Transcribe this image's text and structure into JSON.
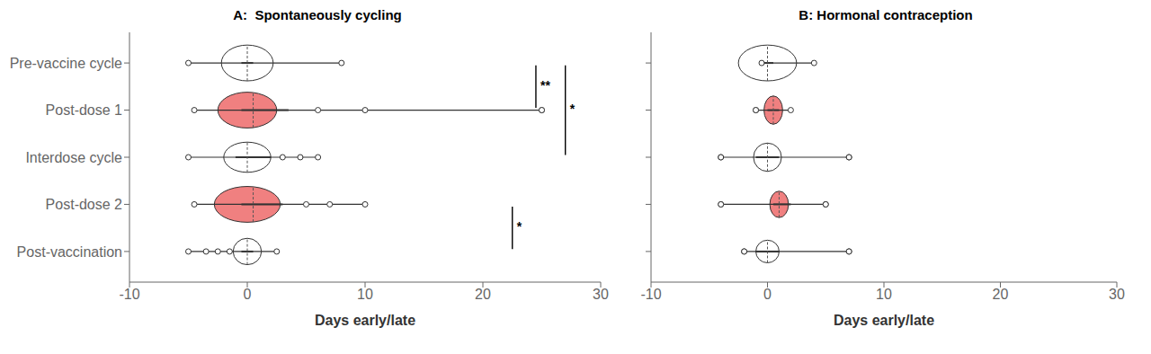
{
  "chart_data": [
    {
      "type": "violin",
      "title": "A:  Spontaneously cycling",
      "xlabel": "Days early/late",
      "categories": [
        "Pre-vaccine cycle",
        "Post-dose 1",
        "Interdose cycle",
        "Post-dose 2",
        "Post-vaccination"
      ],
      "orientation": "horizontal",
      "xlim": [
        -10,
        30
      ],
      "xticks": [
        -10,
        0,
        10,
        20,
        30
      ],
      "grid": false,
      "tick_labels": true,
      "violins": [
        {
          "center": 0.0,
          "half_width": 2.2,
          "height": 0.38,
          "whisker_lo": -5.0,
          "whisker_hi": 8.0,
          "median": 0.0,
          "iqr_lo": -0.5,
          "iqr_hi": 0.5,
          "color": "#ffffff",
          "extra_dots": [],
          "outliers": []
        },
        {
          "center": 0.0,
          "half_width": 2.5,
          "height": 0.38,
          "whisker_lo": -4.5,
          "whisker_hi": 25.0,
          "median": 0.5,
          "iqr_lo": -0.5,
          "iqr_hi": 3.5,
          "color": "#f08080",
          "extra_dots": [
            6.0,
            10.0
          ],
          "outliers": [
            25.0
          ]
        },
        {
          "center": 0.0,
          "half_width": 2.0,
          "height": 0.32,
          "whisker_lo": -5.0,
          "whisker_hi": 6.0,
          "median": 0.0,
          "iqr_lo": -1.0,
          "iqr_hi": 2.0,
          "color": "#ffffff",
          "extra_dots": [
            3.0,
            4.5
          ],
          "outliers": []
        },
        {
          "center": 0.0,
          "half_width": 2.8,
          "height": 0.38,
          "whisker_lo": -4.5,
          "whisker_hi": 10.0,
          "median": 0.5,
          "iqr_lo": -0.5,
          "iqr_hi": 3.0,
          "color": "#f08080",
          "extra_dots": [
            5.0,
            7.0
          ],
          "outliers": []
        },
        {
          "center": 0.0,
          "half_width": 1.2,
          "height": 0.28,
          "whisker_lo": -5.0,
          "whisker_hi": 2.5,
          "median": 0.0,
          "iqr_lo": -0.5,
          "iqr_hi": 0.5,
          "color": "#ffffff",
          "extra_dots": [
            -3.5,
            -2.5,
            -1.5
          ],
          "outliers": []
        }
      ],
      "brackets": [
        {
          "label": "**",
          "x": 24.5,
          "from": "Pre-vaccine cycle",
          "to": "Post-dose 1"
        },
        {
          "label": "*",
          "x": 27.0,
          "from": "Pre-vaccine cycle",
          "to": "Interdose cycle"
        },
        {
          "label": "*",
          "x": 22.5,
          "from": "Post-dose 2",
          "to": "Post-vaccination"
        }
      ]
    },
    {
      "type": "violin",
      "title": "B: Hormonal contraception",
      "xlabel": "Days early/late",
      "categories": [
        "Pre-vaccine cycle",
        "Post-dose 1",
        "Interdose cycle",
        "Post-dose 2",
        "Post-vaccination"
      ],
      "orientation": "horizontal",
      "xlim": [
        -10,
        30
      ],
      "xticks": [
        -10,
        0,
        10,
        20,
        30
      ],
      "grid": false,
      "tick_labels": "x",
      "violins": [
        {
          "center": 0.0,
          "half_width": 2.5,
          "height": 0.38,
          "whisker_lo": -0.5,
          "whisker_hi": 4.0,
          "median": 0.0,
          "iqr_lo": -0.3,
          "iqr_hi": 0.5,
          "color": "#ffffff",
          "extra_dots": [],
          "outliers": []
        },
        {
          "center": 0.5,
          "half_width": 0.8,
          "height": 0.3,
          "whisker_lo": -1.0,
          "whisker_hi": 2.0,
          "median": 0.5,
          "iqr_lo": 0.0,
          "iqr_hi": 1.0,
          "color": "#f08080",
          "extra_dots": [
            -1.0
          ],
          "outliers": []
        },
        {
          "center": 0.0,
          "half_width": 1.2,
          "height": 0.3,
          "whisker_lo": -4.0,
          "whisker_hi": 7.0,
          "median": 0.0,
          "iqr_lo": -1.0,
          "iqr_hi": 1.0,
          "color": "#ffffff",
          "extra_dots": [
            -4.0,
            7.0
          ],
          "outliers": []
        },
        {
          "center": 1.0,
          "half_width": 0.8,
          "height": 0.28,
          "whisker_lo": -4.0,
          "whisker_hi": 5.0,
          "median": 1.0,
          "iqr_lo": 0.5,
          "iqr_hi": 2.0,
          "color": "#f08080",
          "extra_dots": [
            -4.0,
            5.0
          ],
          "outliers": []
        },
        {
          "center": 0.0,
          "half_width": 1.0,
          "height": 0.24,
          "whisker_lo": -2.0,
          "whisker_hi": 7.0,
          "median": 0.0,
          "iqr_lo": -1.0,
          "iqr_hi": 1.0,
          "color": "#ffffff",
          "extra_dots": [
            -2.0,
            7.0
          ],
          "outliers": []
        }
      ],
      "brackets": []
    }
  ]
}
